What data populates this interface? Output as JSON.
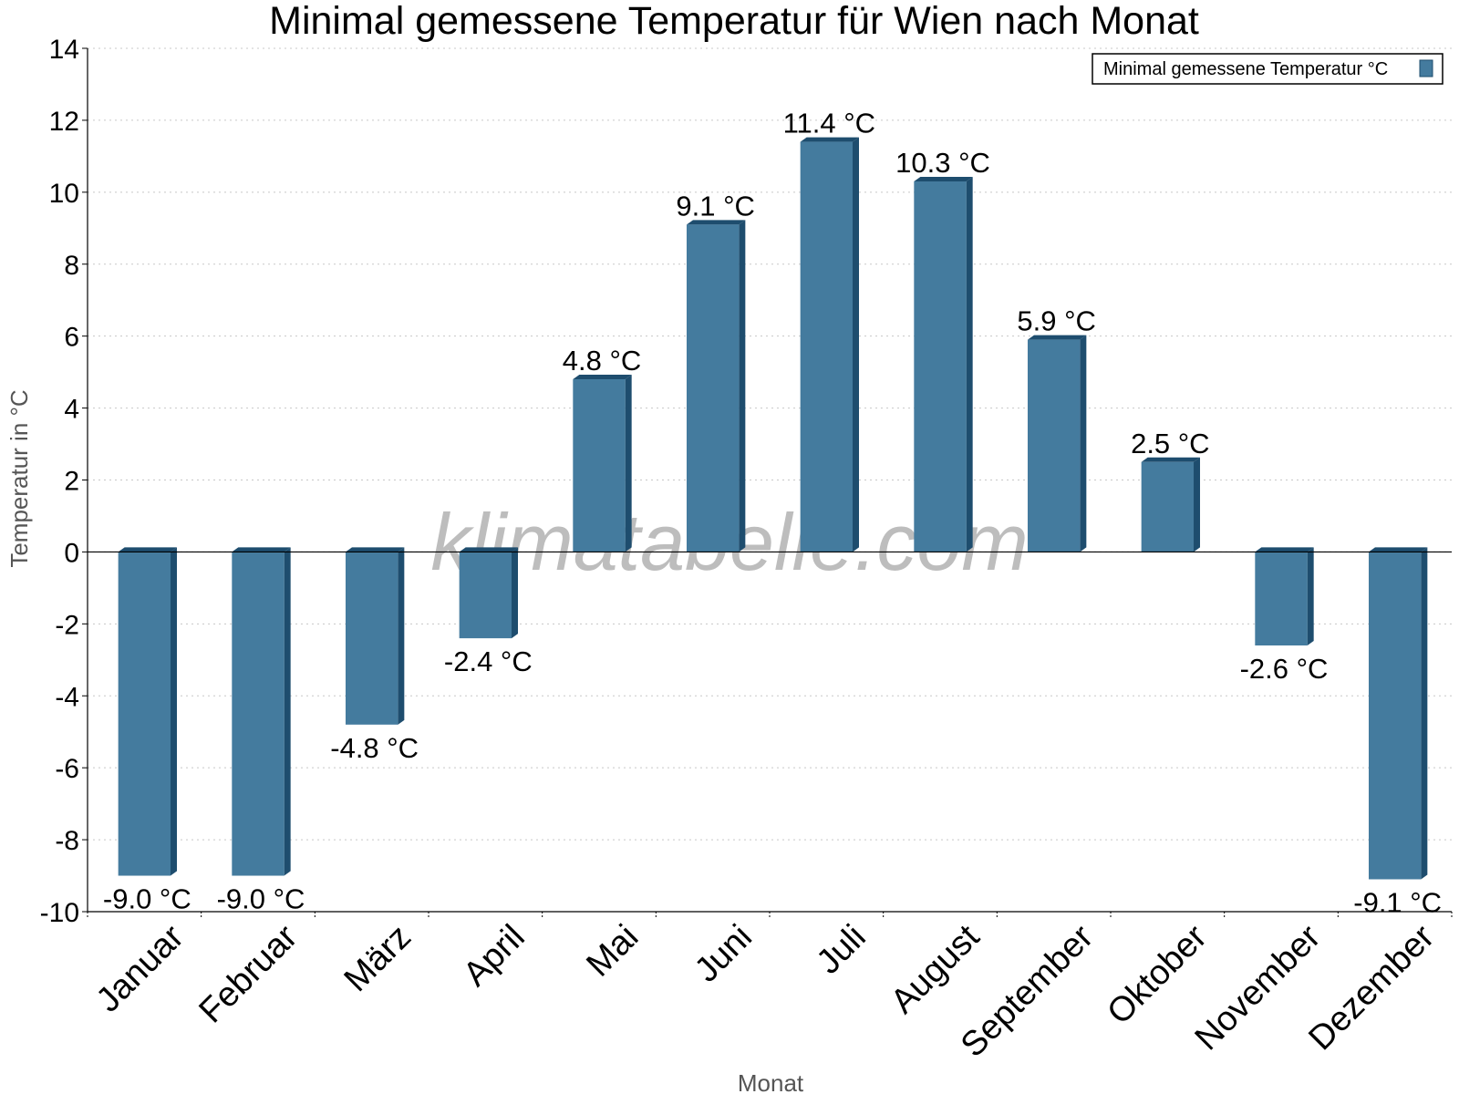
{
  "chart_data": {
    "type": "bar",
    "title": "Minimal gemessene Temperatur für Wien nach Monat",
    "xlabel": "Monat",
    "ylabel": "Temperatur in °C",
    "ylim": [
      -10,
      14
    ],
    "yticks": [
      14,
      12,
      10,
      8,
      6,
      4,
      2,
      0,
      -2,
      -4,
      -6,
      -8,
      -10
    ],
    "grid": true,
    "legend_position": "top-right",
    "categories": [
      "Januar",
      "Februar",
      "März",
      "April",
      "Mai",
      "Juni",
      "Juli",
      "August",
      "September",
      "Oktober",
      "November",
      "Dezember"
    ],
    "series": [
      {
        "name": "Minimal gemessene Temperatur °C",
        "values": [
          -9.0,
          -9.0,
          -4.8,
          -2.4,
          4.8,
          9.1,
          11.4,
          10.3,
          5.9,
          2.5,
          -2.6,
          -9.1
        ],
        "labels": [
          "-9.0 °C",
          "-9.0 °C",
          "-4.8 °C",
          "-2.4 °C",
          "4.8 °C",
          "9.1 °C",
          "11.4 °C",
          "10.3 °C",
          "5.9 °C",
          "2.5 °C",
          "-2.6 °C",
          "-9.1 °C"
        ]
      }
    ],
    "colors": {
      "bar": "#447b9e",
      "bar_side": "#1e4d6e"
    },
    "watermark": "klimatabelle.com"
  }
}
